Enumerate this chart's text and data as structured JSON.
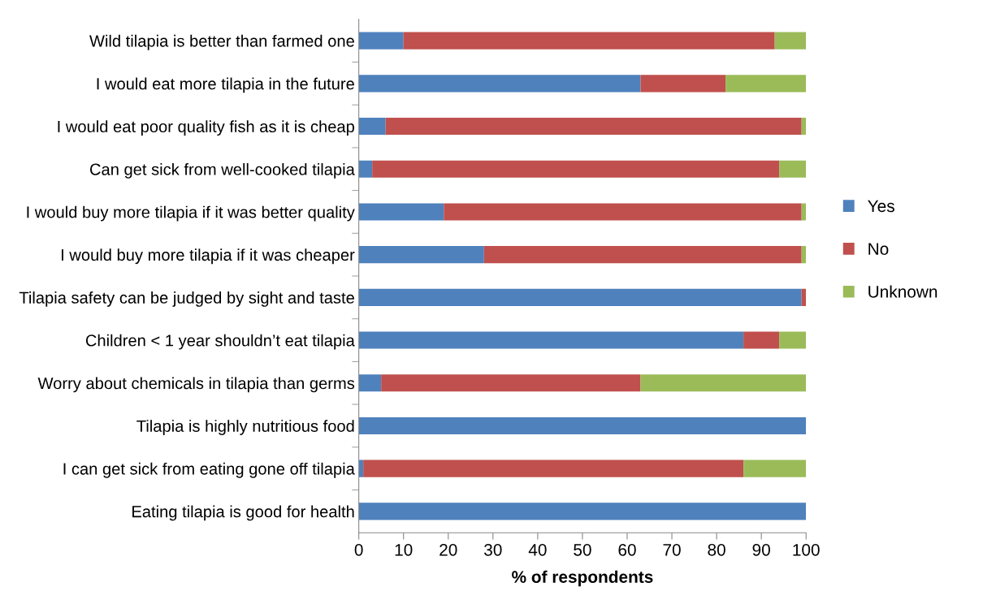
{
  "chart_data": {
    "type": "bar",
    "orientation": "horizontal",
    "stacked": true,
    "xlabel": "% of respondents",
    "categories": [
      "Wild tilapia is better than farmed one",
      "I would eat more tilapia in the future",
      "I would eat poor quality fish as it is cheap",
      "Can get sick from well-cooked tilapia",
      "I would buy more tilapia if it was better quality",
      "I would buy more tilapia if it was cheaper",
      "Tilapia safety can be judged by sight and taste",
      "Children < 1 year shouldn’t eat tilapia",
      "Worry about chemicals in tilapia than germs",
      "Tilapia is highly nutritious food",
      "I can get sick from eating gone off tilapia",
      "Eating tilapia is good for health"
    ],
    "series": [
      {
        "name": "Yes",
        "color": "#4f81bd",
        "values": [
          10,
          63,
          6,
          3,
          19,
          28,
          99,
          86,
          5,
          100,
          1,
          100
        ]
      },
      {
        "name": "No",
        "color": "#c0504d",
        "values": [
          83,
          19,
          93,
          91,
          80,
          71,
          1,
          8,
          58,
          0,
          85,
          0
        ]
      },
      {
        "name": "Unknown",
        "color": "#9bbb59",
        "values": [
          7,
          18,
          1,
          6,
          1,
          1,
          0,
          6,
          37,
          0,
          14,
          0
        ]
      }
    ],
    "xlim": [
      0,
      100
    ],
    "xticks": [
      0,
      10,
      20,
      30,
      40,
      50,
      60,
      70,
      80,
      90,
      100
    ],
    "grid": false,
    "legend": "right"
  }
}
